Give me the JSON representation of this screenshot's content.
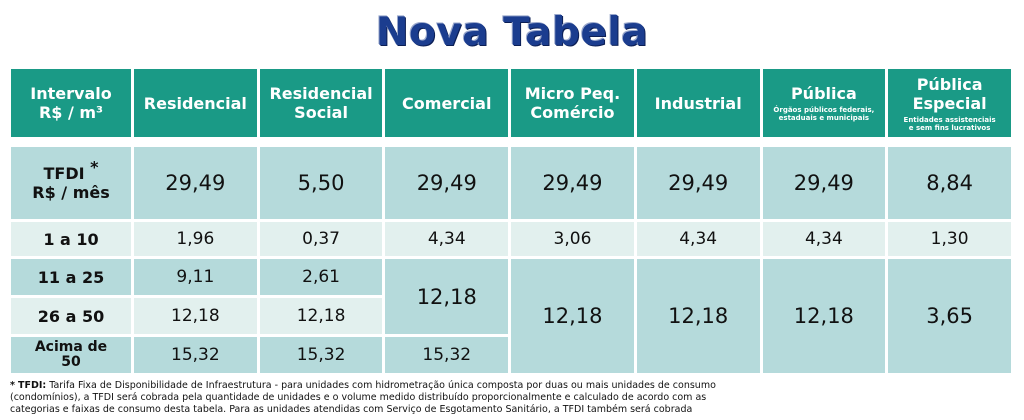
{
  "title": "Nova Tabela",
  "header": {
    "interval": [
      "Intervalo",
      "R$ / m³"
    ],
    "residencial": "Residencial",
    "residencial_social": [
      "Residencial",
      "Social"
    ],
    "comercial": "Comercial",
    "micro": [
      "Micro Peq.",
      "Comércio"
    ],
    "industrial": "Industrial",
    "publica": "Pública",
    "publica_sub": [
      "Órgãos públicos federais,",
      "estaduais e municipais"
    ],
    "publica_especial": [
      "Pública",
      "Especial"
    ],
    "publica_especial_sub": [
      "Entidades assistenciais",
      "e sem fins lucrativos"
    ]
  },
  "tfdi": {
    "label": [
      "TFDI",
      "R$ / mês"
    ],
    "asterisk": "*",
    "values": [
      "29,49",
      "5,50",
      "29,49",
      "29,49",
      "29,49",
      "29,49",
      "8,84"
    ]
  },
  "row_1_10": {
    "label": "1 a 10",
    "values": [
      "1,96",
      "0,37",
      "4,34",
      "3,06",
      "4,34",
      "4,34",
      "1,30"
    ]
  },
  "row_11_25": {
    "label": "11 a 25",
    "residencial": "9,11",
    "residencial_social": "2,61"
  },
  "row_26_50": {
    "label": "26 a 50",
    "residencial": "12,18",
    "residencial_social": "12,18"
  },
  "row_acima": {
    "label": [
      "Acima de",
      "50"
    ],
    "residencial": "15,32",
    "residencial_social": "15,32",
    "comercial": "15,32"
  },
  "merged": {
    "comercial_11_50": "12,18",
    "micro_11_plus": "12,18",
    "industrial_11_plus": "12,18",
    "publica_11_plus": "12,18",
    "publica_especial_11_plus": "3,65"
  },
  "footnote": {
    "marker": "*",
    "term": "TFDI:",
    "lines": [
      "Tarifa Fixa de Disponibilidade de Infraestrutura - para unidades com hidrometração única composta por duas ou mais unidades de consumo",
      "(condomínios), a TFDI será cobrada pela quantidade de unidades e o volume medido distribuído proporcionalmente e calculado de acordo com as",
      "categorias e faixas de consumo desta tabela. Para as unidades atendidas com Serviço de Esgotamento Sanitário, a TFDI também será cobrada"
    ]
  },
  "colors": {
    "title": "#1b3d8f",
    "header_bg": "#1a9a86",
    "cell_dark": "#b5dadb",
    "cell_light": "#e2f0ee"
  }
}
